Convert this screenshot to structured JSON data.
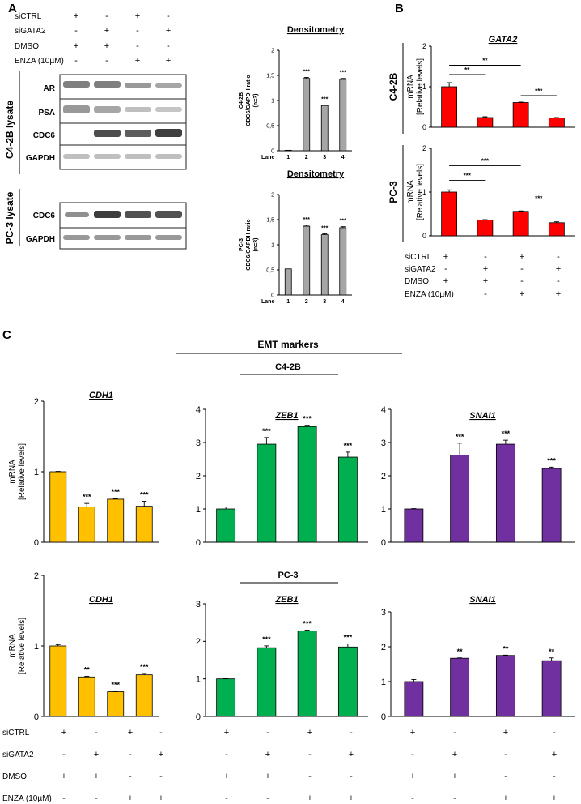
{
  "figure": {
    "panel_labels": {
      "a": "A",
      "b": "B",
      "c": "C"
    },
    "treatments": {
      "labels": [
        "siCTRL",
        "siGATA2",
        "DMSO",
        "ENZA (10µM)"
      ],
      "rows": [
        [
          "+",
          "-",
          "+",
          "-"
        ],
        [
          "-",
          "+",
          "-",
          "+"
        ],
        [
          "+",
          "+",
          "-",
          "-"
        ],
        [
          "-",
          "-",
          "+",
          "+"
        ]
      ]
    },
    "treatments_a": {
      "labels": [
        "siCTRL",
        "siGATA2",
        "DMSO",
        "ENZA (10µM)"
      ]
    },
    "blots": {
      "c42b_label": "C4-2B lysate",
      "pc3_label": "PC-3  lysate",
      "c42b_bands": [
        "AR",
        "PSA",
        "CDC6",
        "GAPDH"
      ],
      "pc3_bands": [
        "CDC6",
        "GAPDH"
      ]
    },
    "section_c": {
      "header": "EMT markers",
      "c42b": "C4-2B",
      "pc3": "PC-3"
    },
    "colors": {
      "red": "#ff0000",
      "yellow": "#ffc000",
      "green": "#00b050",
      "purple": "#7030a0",
      "gray": "#a6a6a6"
    }
  },
  "chart_data": [
    {
      "id": "densitometry-c42b",
      "type": "bar",
      "title": "Densitometry",
      "ylabel_lines": [
        "C4-2B",
        "CDC6/GAPDH ratio",
        "(n=3)"
      ],
      "xlabel": "Lane",
      "categories": [
        "1",
        "2",
        "3",
        "4"
      ],
      "values": [
        0.01,
        1.44,
        0.9,
        1.42
      ],
      "errors": [
        0,
        0.02,
        0.01,
        0.02
      ],
      "significance": [
        "",
        "***",
        "***",
        "***"
      ],
      "ylim": [
        0,
        2
      ],
      "yticks": [
        0,
        0.5,
        1,
        1.5,
        2
      ],
      "ytick_labels": [
        "0",
        "0,5",
        "1",
        "1,5",
        "2"
      ],
      "color": "#a6a6a6"
    },
    {
      "id": "densitometry-pc3",
      "type": "bar",
      "title": "Densitometry",
      "ylabel_lines": [
        "PC-3",
        "CDC6/GAPDH ratio",
        "(n=3)"
      ],
      "xlabel": "Lane",
      "categories": [
        "1",
        "2",
        "3",
        "4"
      ],
      "values": [
        0.52,
        1.37,
        1.2,
        1.34
      ],
      "errors": [
        0,
        0.02,
        0.02,
        0.02
      ],
      "significance": [
        "",
        "***",
        "***",
        "***"
      ],
      "ylim": [
        0,
        2
      ],
      "yticks": [
        0,
        0.5,
        1,
        1.5,
        2
      ],
      "ytick_labels": [
        "0",
        "0,5",
        "1",
        "1,5",
        "2"
      ],
      "color": "#a6a6a6"
    },
    {
      "id": "gata2-c42b",
      "type": "bar",
      "title": "GATA2",
      "cell_label": "C4-2B",
      "ylabel_lines": [
        "mRNA",
        "[Relative levels]"
      ],
      "values": [
        1.0,
        0.24,
        0.61,
        0.23
      ],
      "errors": [
        0.1,
        0.02,
        0.01,
        0.01
      ],
      "ylim": [
        0,
        2
      ],
      "yticks": [
        0,
        1,
        2
      ],
      "ytick_labels": [
        "0",
        "1",
        "2"
      ],
      "brackets": [
        {
          "from": 0,
          "to": 1,
          "y": 1.3,
          "label": "**"
        },
        {
          "from": 0,
          "to": 2,
          "y": 1.53,
          "label": "**"
        },
        {
          "from": 2,
          "to": 3,
          "y": 0.78,
          "label": "***"
        }
      ],
      "color": "#ff0000"
    },
    {
      "id": "gata2-pc3",
      "type": "bar",
      "cell_label": "PC-3",
      "ylabel_lines": [
        "mRNA",
        "[Relative levels]"
      ],
      "values": [
        1.0,
        0.36,
        0.56,
        0.3
      ],
      "errors": [
        0.05,
        0.01,
        0.01,
        0.02
      ],
      "ylim": [
        0,
        2
      ],
      "yticks": [
        0,
        1,
        2
      ],
      "ytick_labels": [
        "0",
        "1",
        "2"
      ],
      "brackets": [
        {
          "from": 0,
          "to": 1,
          "y": 1.27,
          "label": "***"
        },
        {
          "from": 0,
          "to": 2,
          "y": 1.6,
          "label": "***"
        },
        {
          "from": 2,
          "to": 3,
          "y": 0.75,
          "label": "***"
        }
      ],
      "color": "#ff0000"
    },
    {
      "id": "cdh1-c42b",
      "type": "bar",
      "title": "CDH1",
      "ylabel_lines": [
        "mRNA",
        "[Relative levels]"
      ],
      "values": [
        1.0,
        0.5,
        0.61,
        0.51
      ],
      "errors": [
        0.005,
        0.05,
        0.01,
        0.07
      ],
      "significance": [
        "",
        "***",
        "***",
        "***"
      ],
      "ylim": [
        0,
        2
      ],
      "yticks": [
        0,
        1,
        2
      ],
      "ytick_labels": [
        "0",
        "1",
        "2"
      ],
      "color": "#ffc000"
    },
    {
      "id": "zeb1-c42b",
      "type": "bar",
      "title": "ZEB1",
      "values": [
        1.0,
        2.95,
        3.48,
        2.56
      ],
      "errors": [
        0.06,
        0.2,
        0.04,
        0.15
      ],
      "significance": [
        "",
        "***",
        "***",
        "***"
      ],
      "ylim": [
        0,
        4
      ],
      "yticks": [
        0,
        1,
        2,
        3,
        4
      ],
      "ytick_labels": [
        "0",
        "1",
        "2",
        "3",
        "4"
      ],
      "color": "#00b050"
    },
    {
      "id": "snai1-c42b",
      "type": "bar",
      "title": "SNAI1",
      "values": [
        1.0,
        2.62,
        2.95,
        2.22
      ],
      "errors": [
        0.01,
        0.36,
        0.12,
        0.04
      ],
      "significance": [
        "",
        "***",
        "***",
        "***"
      ],
      "ylim": [
        0,
        4
      ],
      "yticks": [
        0,
        1,
        2,
        3,
        4
      ],
      "ytick_labels": [
        "0",
        "1",
        "2",
        "3",
        "4"
      ],
      "color": "#7030a0"
    },
    {
      "id": "cdh1-pc3",
      "type": "bar",
      "title": "CDH1",
      "ylabel_lines": [
        "mRNA",
        "[Relative levels]"
      ],
      "values": [
        1.0,
        0.56,
        0.35,
        0.59
      ],
      "errors": [
        0.02,
        0.01,
        0.005,
        0.02
      ],
      "significance": [
        "",
        "**",
        "***",
        "***"
      ],
      "ylim": [
        0,
        2
      ],
      "yticks": [
        0,
        1,
        2
      ],
      "ytick_labels": [
        "0",
        "1",
        "2"
      ],
      "color": "#ffc000"
    },
    {
      "id": "zeb1-pc3",
      "type": "bar",
      "title": "ZEB1",
      "values": [
        1.0,
        1.83,
        2.28,
        1.85
      ],
      "errors": [
        0.005,
        0.05,
        0.02,
        0.08
      ],
      "significance": [
        "",
        "***",
        "***",
        "***"
      ],
      "ylim": [
        0,
        3
      ],
      "yticks": [
        0,
        1,
        2,
        3
      ],
      "ytick_labels": [
        "0",
        "1",
        "2",
        "3"
      ],
      "color": "#00b050"
    },
    {
      "id": "snai1-pc3",
      "type": "bar",
      "title": "SNAI1",
      "values": [
        1.0,
        1.67,
        1.75,
        1.6
      ],
      "errors": [
        0.06,
        0.01,
        0.01,
        0.08
      ],
      "significance": [
        "",
        "**",
        "**",
        "**"
      ],
      "ylim": [
        0,
        3
      ],
      "yticks": [
        0,
        1,
        2,
        3
      ],
      "ytick_labels": [
        "0",
        "1",
        "2",
        "3"
      ],
      "color": "#7030a0"
    }
  ]
}
